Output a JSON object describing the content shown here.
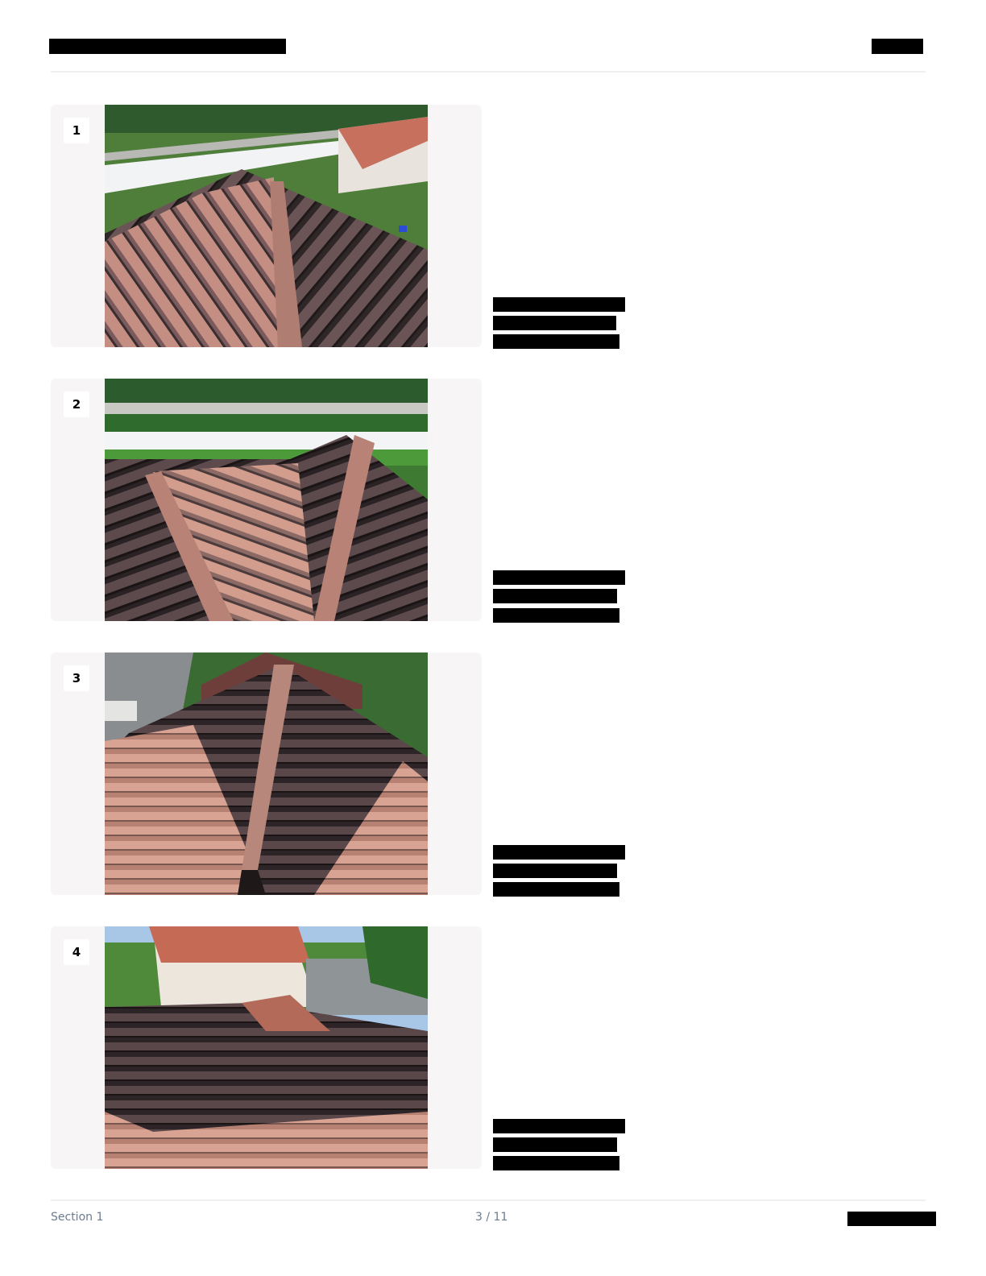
{
  "header": {
    "title_redacted": true,
    "right_redacted": true
  },
  "photos": [
    {
      "number": "1",
      "image": "roof-photo-tile-hip-ridge-with-yard"
    },
    {
      "number": "2",
      "image": "roof-photo-tile-valley-with-fence"
    },
    {
      "number": "3",
      "image": "roof-photo-tile-ridge-with-street"
    },
    {
      "number": "4",
      "image": "roof-photo-tile-slope-with-neighbor-house"
    }
  ],
  "footer": {
    "section": "Section 1",
    "page": "3 / 11"
  },
  "colors": {
    "card_bg": "#f7f5f6",
    "footer_text": "#6b7c8f",
    "tile_terracotta": "#c98a7a",
    "tile_dark": "#3a2e30"
  }
}
